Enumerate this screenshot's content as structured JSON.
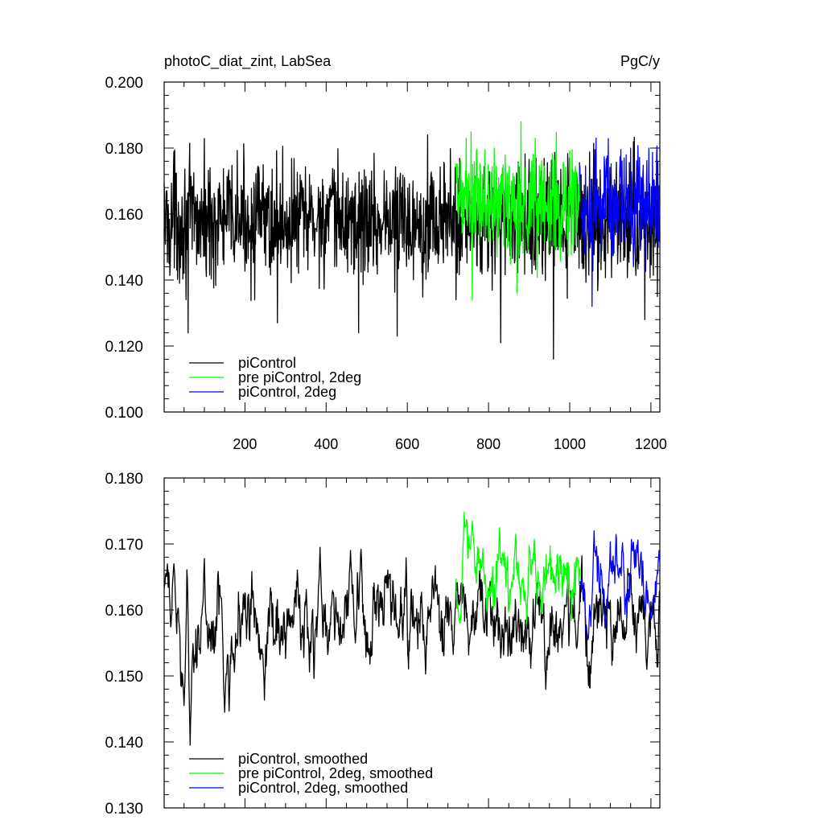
{
  "title_left": "photoC_diat_zint, LabSea",
  "title_right": "PgC/y",
  "x_tick_labels": [
    "200",
    "400",
    "600",
    "800",
    "1000",
    "1200"
  ],
  "colors": {
    "piControl": "#000000",
    "pre_piControl_2deg": "#00ff00",
    "piControl_2deg": "#0000ff"
  },
  "chart_data": [
    {
      "type": "line",
      "title": "photoC_diat_zint, LabSea",
      "units": "PgC/y",
      "xlim": [
        1,
        1222
      ],
      "ylim": [
        0.1,
        0.2
      ],
      "x_ticks": [
        200,
        400,
        600,
        800,
        1000,
        1200
      ],
      "y_ticks": [
        "0.100",
        "0.120",
        "0.140",
        "0.160",
        "0.180",
        "0.200"
      ],
      "legend_position": "bottom-left",
      "series": [
        {
          "name": "piControl",
          "color": "#000000",
          "x_range": [
            1,
            1222
          ],
          "mean": 0.158,
          "noise": 0.009,
          "min": 0.116,
          "max": 0.184,
          "extremes": [
            [
              25,
              0.179
            ],
            [
              60,
              0.124
            ],
            [
              280,
              0.127
            ],
            [
              480,
              0.124
            ],
            [
              575,
              0.123
            ],
            [
              650,
              0.184
            ],
            [
              830,
              0.121
            ],
            [
              960,
              0.116
            ],
            [
              1185,
              0.128
            ]
          ]
        },
        {
          "name": "pre piControl, 2deg",
          "color": "#00ff00",
          "x_range": [
            720,
            1025
          ],
          "mean": 0.163,
          "noise": 0.009,
          "min": 0.134,
          "max": 0.188,
          "extremes": [
            [
              745,
              0.183
            ],
            [
              760,
              0.134
            ],
            [
              880,
              0.188
            ],
            [
              870,
              0.136
            ],
            [
              915,
              0.183
            ]
          ]
        },
        {
          "name": "piControl, 2deg",
          "color": "#0000ff",
          "x_range": [
            1025,
            1222
          ],
          "mean": 0.163,
          "noise": 0.008,
          "min": 0.132,
          "max": 0.183,
          "extremes": [
            [
              1055,
              0.132
            ],
            [
              1065,
              0.183
            ],
            [
              1150,
              0.18
            ],
            [
              1195,
              0.18
            ]
          ]
        }
      ]
    },
    {
      "type": "line",
      "xlim": [
        1,
        1222
      ],
      "ylim": [
        0.13,
        0.18
      ],
      "x_ticks": [
        200,
        400,
        600,
        800,
        1000,
        1200
      ],
      "y_ticks": [
        "0.130",
        "0.140",
        "0.150",
        "0.160",
        "0.170",
        "0.180"
      ],
      "legend_position": "bottom-left",
      "series": [
        {
          "name": "piControl, smoothed",
          "color": "#000000",
          "x_range": [
            1,
            1222
          ],
          "mean": 0.158,
          "noise": 0.0035,
          "min": 0.139,
          "max": 0.1695,
          "extremes": [
            [
              5,
              0.1655
            ],
            [
              25,
              0.167
            ],
            [
              50,
              0.1455
            ],
            [
              65,
              0.1395
            ],
            [
              150,
              0.1445
            ],
            [
              385,
              0.1695
            ],
            [
              460,
              0.169
            ],
            [
              1190,
              0.151
            ]
          ]
        },
        {
          "name": "pre piControl, 2deg, smoothed",
          "color": "#00ff00",
          "x_range": [
            720,
            1025
          ],
          "mean": 0.165,
          "noise": 0.003,
          "min": 0.158,
          "max": 0.1748,
          "extremes": [
            [
              740,
              0.1748
            ],
            [
              760,
              0.1735
            ],
            [
              730,
              0.158
            ]
          ]
        },
        {
          "name": "piControl, 2deg, smoothed",
          "color": "#0000ff",
          "x_range": [
            1025,
            1222
          ],
          "mean": 0.164,
          "noise": 0.003,
          "min": 0.1555,
          "max": 0.172,
          "extremes": [
            [
              1060,
              0.172
            ],
            [
              1045,
              0.1555
            ],
            [
              1200,
              0.1585
            ],
            [
              1220,
              0.169
            ]
          ]
        }
      ]
    }
  ]
}
